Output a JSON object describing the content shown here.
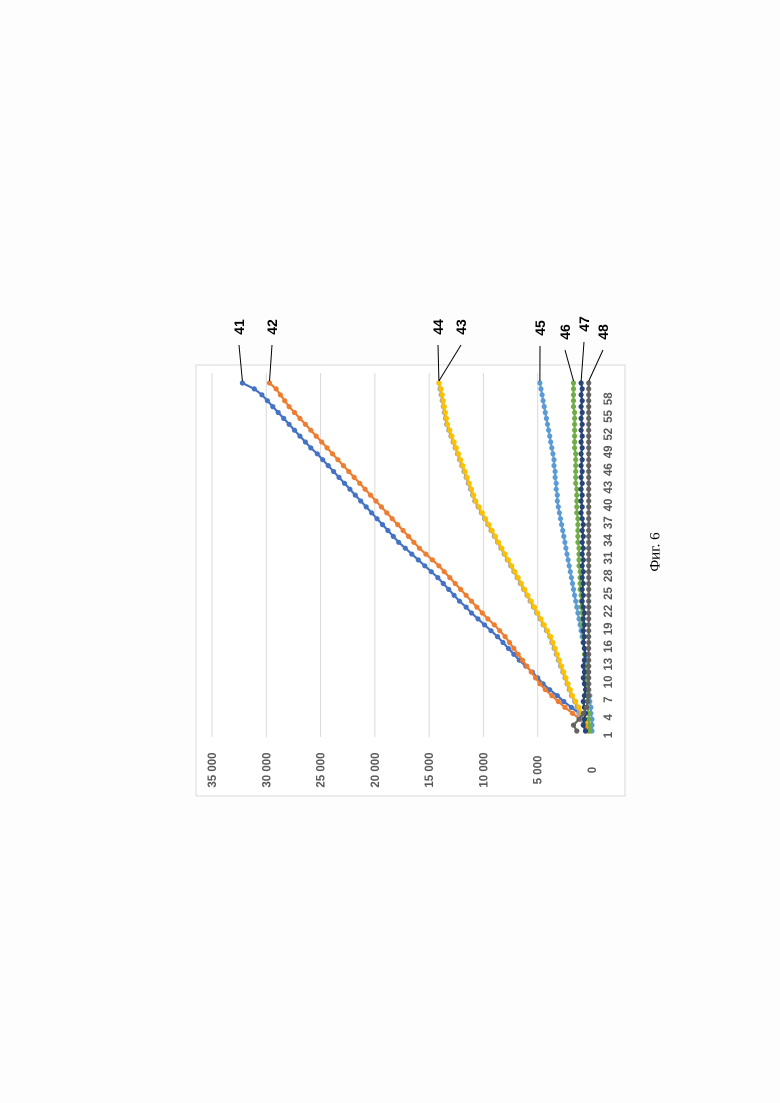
{
  "caption": "Фиг. 6",
  "chart_data": {
    "type": "line",
    "orientation": "rotated 90° counter-clockwise on page",
    "grid": true,
    "legend": "none",
    "ylim": [
      0,
      35000
    ],
    "y_ticks": [
      "0",
      "5 000",
      "10 000",
      "15 000",
      "20 000",
      "25 000",
      "30 000",
      "35 000"
    ],
    "x": [
      1,
      2,
      3,
      4,
      5,
      6,
      7,
      8,
      9,
      10,
      11,
      12,
      13,
      14,
      15,
      16,
      17,
      18,
      19,
      20,
      21,
      22,
      23,
      24,
      25,
      26,
      27,
      28,
      29,
      30,
      31,
      32,
      33,
      34,
      35,
      36,
      37,
      38,
      39,
      40,
      41,
      42,
      43,
      44,
      45,
      46,
      47,
      48,
      49,
      50,
      51,
      52,
      53,
      54,
      55,
      56,
      57,
      58,
      59,
      60
    ],
    "x_ticks": [
      "1",
      "4",
      "7",
      "10",
      "13",
      "16",
      "19",
      "22",
      "25",
      "28",
      "31",
      "34",
      "37",
      "40",
      "43",
      "46",
      "49",
      "52",
      "55",
      "58"
    ],
    "series": [
      {
        "name": "41",
        "color": "#4472C4",
        "values": [
          300,
          400,
          700,
          1200,
          1900,
          2600,
          3200,
          3900,
          4500,
          5000,
          5500,
          6100,
          6700,
          7200,
          7700,
          8200,
          8700,
          9300,
          9900,
          10500,
          11100,
          11600,
          12200,
          12700,
          13200,
          13700,
          14200,
          14800,
          15400,
          16000,
          16600,
          17200,
          17800,
          18300,
          18800,
          19300,
          19800,
          20300,
          20800,
          21300,
          21800,
          22300,
          22800,
          23300,
          23800,
          24300,
          24800,
          25300,
          25900,
          26400,
          26900,
          27400,
          27900,
          28400,
          28900,
          29400,
          29900,
          30400,
          31100,
          32200
        ]
      },
      {
        "name": "42",
        "color": "#ED7D31",
        "values": [
          300,
          600,
          1100,
          1800,
          2500,
          3100,
          3700,
          4300,
          4800,
          5200,
          5600,
          6000,
          6400,
          6800,
          7200,
          7600,
          8000,
          8500,
          9000,
          9600,
          10100,
          10600,
          11100,
          11600,
          12100,
          12600,
          13100,
          13600,
          14100,
          14700,
          15300,
          15900,
          16400,
          16900,
          17400,
          17900,
          18400,
          18900,
          19400,
          19900,
          20400,
          20900,
          21400,
          21900,
          22400,
          22900,
          23400,
          23900,
          24400,
          24900,
          25400,
          25900,
          26400,
          26900,
          27400,
          27900,
          28300,
          28700,
          29100,
          29700
        ]
      },
      {
        "name": "43",
        "color": "#A5A5A5",
        "values": [
          600,
          800,
          1000,
          1200,
          1400,
          1600,
          1900,
          2100,
          2300,
          2500,
          2700,
          2900,
          3100,
          3300,
          3500,
          3700,
          3900,
          4200,
          4500,
          4800,
          5100,
          5400,
          5700,
          6000,
          6300,
          6600,
          6900,
          7200,
          7500,
          7800,
          8100,
          8400,
          8700,
          9000,
          9300,
          9600,
          9900,
          10200,
          10500,
          10800,
          11000,
          11200,
          11400,
          11600,
          11800,
          12000,
          12200,
          12400,
          12600,
          12800,
          13000,
          13200,
          13400,
          13500,
          13600,
          13700,
          13800,
          13900,
          14000,
          14100
        ]
      },
      {
        "name": "44",
        "color": "#FFC000",
        "values": [
          100,
          300,
          600,
          900,
          1200,
          1500,
          1800,
          2000,
          2200,
          2400,
          2600,
          2800,
          3000,
          3200,
          3400,
          3600,
          3800,
          4100,
          4400,
          4700,
          5000,
          5300,
          5600,
          5900,
          6200,
          6500,
          6800,
          7100,
          7400,
          7700,
          8000,
          8300,
          8600,
          8900,
          9200,
          9500,
          9800,
          10100,
          10400,
          10700,
          10900,
          11100,
          11300,
          11500,
          11700,
          11900,
          12100,
          12300,
          12500,
          12700,
          12900,
          13100,
          13300,
          13400,
          13500,
          13600,
          13700,
          13800,
          13900,
          14100
        ]
      },
      {
        "name": "45",
        "color": "#5B9BD5",
        "values": [
          0,
          0,
          0,
          100,
          100,
          200,
          200,
          300,
          300,
          400,
          400,
          500,
          500,
          600,
          700,
          800,
          900,
          1000,
          1100,
          1200,
          1300,
          1400,
          1500,
          1600,
          1700,
          1800,
          1900,
          2000,
          2100,
          2200,
          2300,
          2400,
          2500,
          2600,
          2700,
          2800,
          2900,
          3000,
          3100,
          3200,
          3200,
          3300,
          3300,
          3400,
          3400,
          3500,
          3500,
          3600,
          3700,
          3800,
          3900,
          4000,
          4100,
          4200,
          4300,
          4400,
          4500,
          4600,
          4700,
          4800
        ]
      },
      {
        "name": "46",
        "color": "#70AD47",
        "values": [
          200,
          200,
          300,
          300,
          400,
          400,
          500,
          500,
          500,
          600,
          600,
          600,
          700,
          700,
          700,
          800,
          800,
          800,
          900,
          900,
          900,
          1000,
          1000,
          1000,
          1100,
          1100,
          1100,
          1100,
          1200,
          1200,
          1200,
          1200,
          1300,
          1300,
          1300,
          1300,
          1300,
          1400,
          1400,
          1400,
          1400,
          1400,
          1500,
          1500,
          1500,
          1500,
          1500,
          1500,
          1600,
          1600,
          1600,
          1600,
          1600,
          1600,
          1600,
          1700,
          1700,
          1700,
          1700,
          1700
        ]
      },
      {
        "name": "47",
        "color": "#264478",
        "values": [
          600,
          800,
          700,
          600,
          700,
          800,
          700,
          600,
          700,
          800,
          700,
          800,
          700,
          600,
          700,
          800,
          700,
          800,
          700,
          800,
          700,
          800,
          900,
          800,
          900,
          800,
          900,
          800,
          900,
          800,
          900,
          800,
          900,
          800,
          900,
          800,
          900,
          1000,
          900,
          1000,
          900,
          1000,
          900,
          1000,
          900,
          1000,
          900,
          1000,
          900,
          1000,
          900,
          1000,
          900,
          1000,
          900,
          1000,
          900,
          1000,
          900,
          1000
        ]
      },
      {
        "name": "48",
        "color": "#636363",
        "values": [
          1400,
          1700,
          1200,
          800,
          500,
          400,
          300,
          300,
          300,
          300,
          300,
          300,
          300,
          300,
          300,
          300,
          300,
          300,
          300,
          300,
          300,
          300,
          300,
          300,
          300,
          300,
          300,
          300,
          300,
          300,
          300,
          300,
          300,
          300,
          300,
          300,
          300,
          300,
          300,
          300,
          300,
          300,
          300,
          300,
          300,
          300,
          300,
          300,
          300,
          300,
          300,
          300,
          300,
          300,
          300,
          300,
          300,
          300,
          300,
          300
        ]
      }
    ]
  }
}
